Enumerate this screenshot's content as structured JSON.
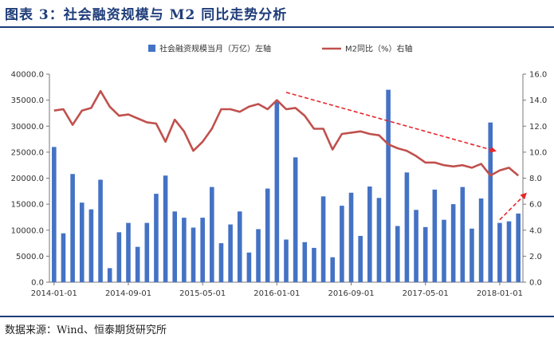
{
  "header": {
    "title": "图表 3：社会融资规模与 M2 同比走势分析"
  },
  "footer": {
    "source": "数据来源：Wind、恒泰期货研究所"
  },
  "chart_data": {
    "type": "bar+line",
    "categories": [
      "2014-01",
      "2014-02",
      "2014-03",
      "2014-04",
      "2014-05",
      "2014-06",
      "2014-07",
      "2014-08",
      "2014-09",
      "2014-10",
      "2014-11",
      "2014-12",
      "2015-01",
      "2015-02",
      "2015-03",
      "2015-04",
      "2015-05",
      "2015-06",
      "2015-07",
      "2015-08",
      "2015-09",
      "2015-10",
      "2015-11",
      "2015-12",
      "2016-01",
      "2016-02",
      "2016-03",
      "2016-04",
      "2016-05",
      "2016-06",
      "2016-07",
      "2016-08",
      "2016-09",
      "2016-10",
      "2016-11",
      "2016-12",
      "2017-01",
      "2017-02",
      "2017-03",
      "2017-04",
      "2017-05",
      "2017-06",
      "2017-07",
      "2017-08",
      "2017-09",
      "2017-10",
      "2017-11",
      "2017-12",
      "2018-01",
      "2018-02",
      "2018-03"
    ],
    "x_tick_labels": [
      "2014-01-01",
      "2014-09-01",
      "2015-05-01",
      "2016-01-01",
      "2016-09-01",
      "2017-05-01",
      "2018-01-01"
    ],
    "x_tick_index": [
      0,
      8,
      16,
      24,
      32,
      40,
      48
    ],
    "series": [
      {
        "name": "社会融资规模当月（万亿）左轴",
        "type": "bar",
        "axis": "left",
        "color": "#4472c4",
        "values": [
          26000,
          9400,
          20800,
          15300,
          14000,
          19700,
          2700,
          9600,
          11400,
          6800,
          11400,
          17000,
          20500,
          13600,
          12400,
          10500,
          12400,
          18300,
          7500,
          11100,
          13600,
          5700,
          10200,
          18000,
          34700,
          8200,
          24000,
          7700,
          6600,
          16500,
          4800,
          14700,
          17200,
          8900,
          18400,
          16200,
          37000,
          10800,
          21100,
          13900,
          10600,
          17800,
          12000,
          15000,
          18300,
          10300,
          16100,
          30700,
          11400,
          11700,
          13200
        ]
      },
      {
        "name": "M2同比（%）右轴",
        "type": "line",
        "axis": "right",
        "color": "#c0504d",
        "values": [
          13.2,
          13.3,
          12.1,
          13.2,
          13.4,
          14.7,
          13.5,
          12.8,
          12.9,
          12.6,
          12.3,
          12.2,
          10.8,
          12.5,
          11.6,
          10.1,
          10.8,
          11.8,
          13.3,
          13.3,
          13.1,
          13.5,
          13.7,
          13.3,
          14.0,
          13.3,
          13.4,
          12.8,
          11.8,
          11.8,
          10.2,
          11.4,
          11.5,
          11.6,
          11.4,
          11.3,
          10.6,
          10.3,
          10.1,
          9.7,
          9.2,
          9.2,
          9.0,
          8.9,
          9.0,
          8.8,
          9.1,
          8.2,
          8.6,
          8.8,
          8.2
        ]
      }
    ],
    "y_left": {
      "min": 0,
      "max": 40000,
      "step": 5000,
      "tick_labels": [
        "0.0",
        "5000.0",
        "10000.0",
        "15000.0",
        "20000.0",
        "25000.0",
        "30000.0",
        "35000.0",
        "40000.0"
      ]
    },
    "y_right": {
      "min": 0,
      "max": 16,
      "step": 2,
      "tick_labels": [
        "0.0",
        "2.0",
        "4.0",
        "6.0",
        "8.0",
        "10.0",
        "12.0",
        "14.0",
        "16.0"
      ]
    },
    "legend": {
      "placement": "top-center"
    },
    "annotations": [
      {
        "type": "trend-arrow",
        "color": "#e8262a",
        "from": {
          "index": 25,
          "right_value": 14.6
        },
        "to": {
          "index": 47.5,
          "right_value": 10.1
        }
      },
      {
        "type": "trend-arrow",
        "color": "#e8262a",
        "from": {
          "index": 48,
          "right_value": 4.8
        },
        "to": {
          "index": 50.8,
          "right_value": 6.8
        }
      }
    ],
    "grid": false
  }
}
